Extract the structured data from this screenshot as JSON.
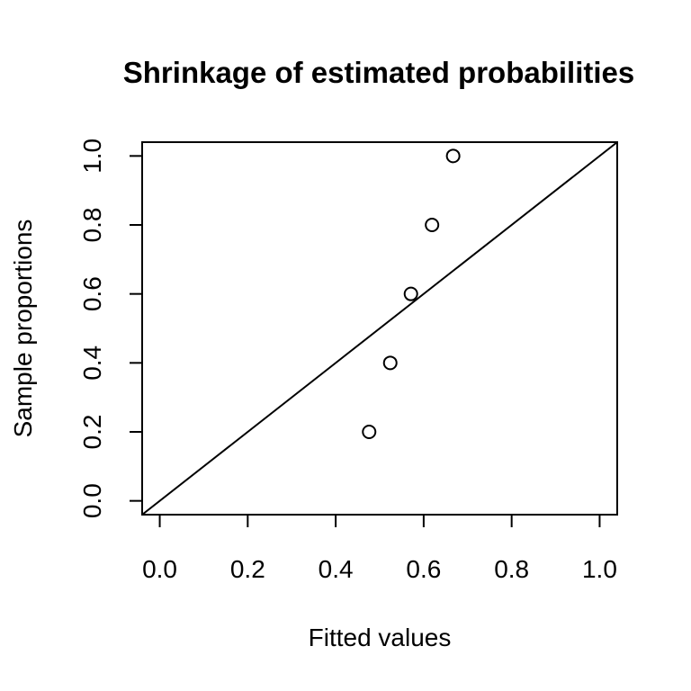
{
  "chart_data": {
    "type": "scatter",
    "title": "Shrinkage of estimated probabilities",
    "xlabel": "Fitted values",
    "ylabel": "Sample proportions",
    "xlim": [
      -0.04,
      1.04
    ],
    "ylim": [
      -0.04,
      1.04
    ],
    "x_ticks": [
      "0.0",
      "0.2",
      "0.4",
      "0.6",
      "0.8",
      "1.0"
    ],
    "y_ticks": [
      "0.0",
      "0.2",
      "0.4",
      "0.6",
      "0.8",
      "1.0"
    ],
    "points": [
      {
        "x": 0.476,
        "y": 0.2
      },
      {
        "x": 0.524,
        "y": 0.4
      },
      {
        "x": 0.571,
        "y": 0.6
      },
      {
        "x": 0.619,
        "y": 0.8
      },
      {
        "x": 0.667,
        "y": 1.0
      }
    ],
    "reference_line": {
      "intercept": 0,
      "slope": 1
    },
    "grid": false,
    "legend": "none",
    "point_style": "open-circle",
    "color": "#000000"
  }
}
